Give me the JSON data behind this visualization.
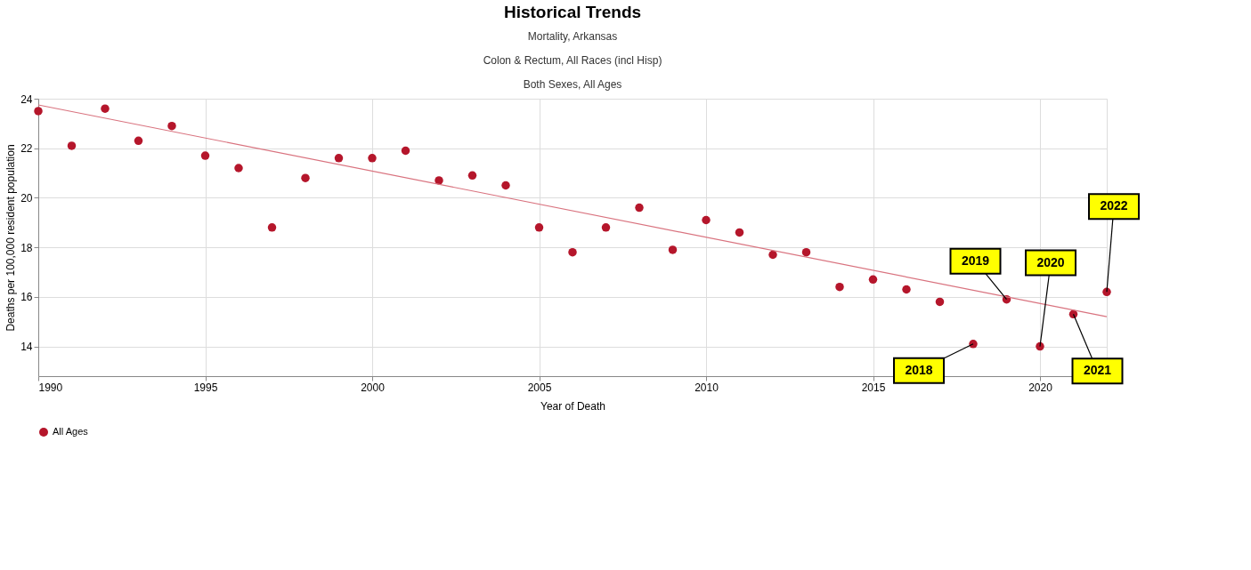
{
  "chart_data": {
    "type": "scatter",
    "title": "Historical Trends",
    "subtitle": "Mortality, Arkansas\nColon & Rectum, All Races (incl Hisp)\nBoth Sexes, All Ages",
    "xlabel": "Year of Death",
    "ylabel": "Deaths per 100,000 resident population",
    "series": [
      {
        "name": "All Ages",
        "color": "#b5162b",
        "x": [
          1990,
          1991,
          1992,
          1993,
          1994,
          1995,
          1996,
          1997,
          1998,
          1999,
          2000,
          2001,
          2002,
          2003,
          2004,
          2005,
          2006,
          2007,
          2008,
          2009,
          2010,
          2011,
          2012,
          2013,
          2014,
          2015,
          2016,
          2017,
          2018,
          2019,
          2020,
          2021,
          2022
        ],
        "values": [
          23.5,
          22.1,
          23.6,
          22.3,
          22.9,
          21.7,
          21.2,
          18.8,
          20.8,
          21.6,
          21.6,
          21.9,
          20.7,
          20.9,
          20.5,
          18.8,
          17.8,
          18.8,
          19.6,
          17.9,
          19.1,
          18.6,
          17.7,
          17.8,
          16.4,
          16.7,
          16.3,
          15.8,
          14.1,
          15.9,
          14.0,
          15.3,
          16.2
        ]
      },
      {
        "type": "line",
        "marker": "none",
        "color": "#d9737f",
        "x": [
          1990,
          2022
        ],
        "values": [
          23.75,
          15.2
        ]
      }
    ],
    "annotations": [
      {
        "text": "2018",
        "x": 2018,
        "y": 14.1
      },
      {
        "text": "2019",
        "x": 2019,
        "y": 15.9
      },
      {
        "text": "2020",
        "x": 2020,
        "y": 14.0
      },
      {
        "text": "2021",
        "x": 2021,
        "y": 15.3
      },
      {
        "text": "2022",
        "x": 2022,
        "y": 16.2
      }
    ],
    "xlim": [
      1990,
      2022
    ],
    "xticks": [
      1990,
      1995,
      2000,
      2005,
      2010,
      2015,
      2020
    ],
    "ylim": [
      12.8,
      24
    ],
    "yticks": [
      14,
      16,
      18,
      20,
      22,
      24
    ],
    "grid": true,
    "legend": "bottom",
    "marker": "circle"
  }
}
